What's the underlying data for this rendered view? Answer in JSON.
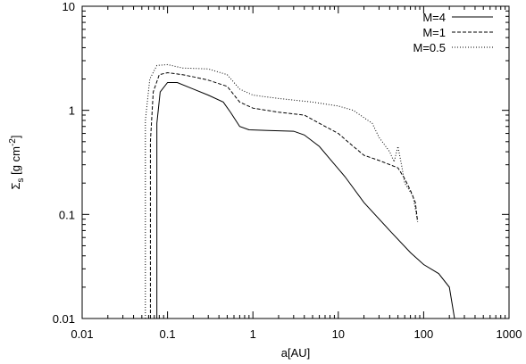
{
  "chart_data": {
    "type": "line",
    "title": "",
    "xlabel": "a[AU]",
    "ylabel": {
      "base": "Σ",
      "sub": "s",
      "unit_pre": " [g cm",
      "unit_sup": "-2",
      "unit_post": "]"
    },
    "xscale": "log",
    "yscale": "log",
    "xlim": [
      0.01,
      1000
    ],
    "ylim": [
      0.01,
      10
    ],
    "xticks": [
      {
        "value": 0.01,
        "label": "0.01"
      },
      {
        "value": 0.1,
        "label": "0.1"
      },
      {
        "value": 1,
        "label": "1"
      },
      {
        "value": 10,
        "label": "10"
      },
      {
        "value": 100,
        "label": "100"
      },
      {
        "value": 1000,
        "label": "1000"
      }
    ],
    "yticks": [
      {
        "value": 0.01,
        "label": "0.01"
      },
      {
        "value": 0.1,
        "label": "0.1"
      },
      {
        "value": 1,
        "label": "1"
      },
      {
        "value": 10,
        "label": "10"
      }
    ],
    "grid": false,
    "legend_position": "top-right",
    "series": [
      {
        "name": "M=4",
        "style": "solid",
        "color": "#000000",
        "points": [
          [
            0.075,
            0.01
          ],
          [
            0.075,
            0.75
          ],
          [
            0.082,
            1.5
          ],
          [
            0.1,
            1.85
          ],
          [
            0.13,
            1.85
          ],
          [
            0.2,
            1.6
          ],
          [
            0.3,
            1.4
          ],
          [
            0.45,
            1.2
          ],
          [
            0.55,
            0.95
          ],
          [
            0.7,
            0.7
          ],
          [
            0.9,
            0.65
          ],
          [
            1.5,
            0.64
          ],
          [
            3,
            0.63
          ],
          [
            4,
            0.58
          ],
          [
            6,
            0.45
          ],
          [
            8,
            0.34
          ],
          [
            12,
            0.23
          ],
          [
            20,
            0.13
          ],
          [
            40,
            0.07
          ],
          [
            70,
            0.043
          ],
          [
            100,
            0.033
          ],
          [
            150,
            0.027
          ],
          [
            200,
            0.02
          ],
          [
            230,
            0.01
          ]
        ]
      },
      {
        "name": "M=1",
        "style": "dashed",
        "color": "#000000",
        "points": [
          [
            0.063,
            0.01
          ],
          [
            0.063,
            0.5
          ],
          [
            0.068,
            1.5
          ],
          [
            0.08,
            2.2
          ],
          [
            0.1,
            2.3
          ],
          [
            0.15,
            2.2
          ],
          [
            0.2,
            2.1
          ],
          [
            0.3,
            1.95
          ],
          [
            0.5,
            1.7
          ],
          [
            0.7,
            1.2
          ],
          [
            1,
            1.05
          ],
          [
            2,
            0.96
          ],
          [
            4,
            0.9
          ],
          [
            6,
            0.75
          ],
          [
            10,
            0.6
          ],
          [
            15,
            0.45
          ],
          [
            20,
            0.37
          ],
          [
            30,
            0.33
          ],
          [
            50,
            0.28
          ],
          [
            60,
            0.22
          ],
          [
            70,
            0.17
          ],
          [
            80,
            0.13
          ],
          [
            85,
            0.085
          ]
        ]
      },
      {
        "name": "M=0.5",
        "style": "dotted",
        "color": "#000000",
        "points": [
          [
            0.055,
            0.01
          ],
          [
            0.055,
            0.8
          ],
          [
            0.062,
            2.0
          ],
          [
            0.075,
            2.7
          ],
          [
            0.1,
            2.75
          ],
          [
            0.15,
            2.55
          ],
          [
            0.3,
            2.5
          ],
          [
            0.5,
            2.2
          ],
          [
            0.7,
            1.6
          ],
          [
            1,
            1.4
          ],
          [
            2,
            1.3
          ],
          [
            5,
            1.2
          ],
          [
            10,
            1.1
          ],
          [
            15,
            1.0
          ],
          [
            20,
            0.85
          ],
          [
            25,
            0.75
          ],
          [
            30,
            0.55
          ],
          [
            40,
            0.4
          ],
          [
            45,
            0.32
          ],
          [
            50,
            0.45
          ],
          [
            55,
            0.3
          ],
          [
            60,
            0.2
          ],
          [
            75,
            0.15
          ],
          [
            85,
            0.085
          ]
        ]
      }
    ]
  }
}
